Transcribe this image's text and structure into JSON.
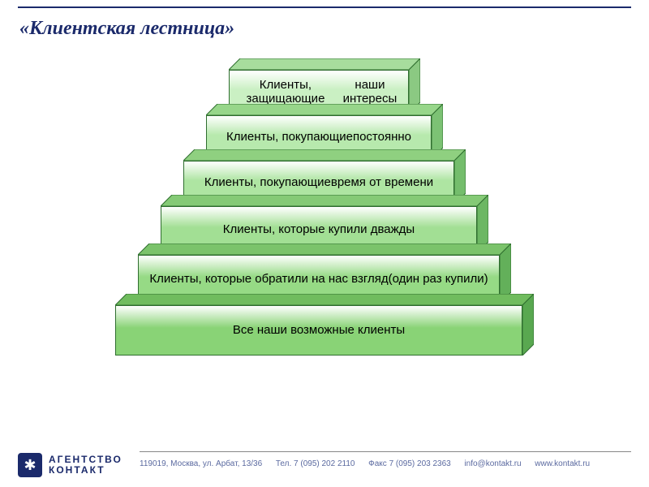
{
  "title": "«Клиентская лестница»",
  "title_color": "#1b2a6b",
  "title_fontsize": 24,
  "background_color": "#ffffff",
  "pyramid": {
    "type": "infographic",
    "depth": 14,
    "border_color": "#2f6e2f",
    "text_color": "#000000",
    "label_fontsize": 15,
    "steps": [
      {
        "label_line1": "Клиенты, защищающие",
        "label_line2": "наши интересы",
        "front_width": 222,
        "front_height": 54,
        "front_color": "#caf0c3",
        "top_color": "#a7dd9d",
        "side_color": "#8bc982"
      },
      {
        "label_line1": "Клиенты, покупающие",
        "label_line2": "постоянно",
        "front_width": 278,
        "front_height": 54,
        "front_color": "#b7e9ad",
        "top_color": "#97d68a",
        "side_color": "#7cc274"
      },
      {
        "label_line1": "Клиенты, покупающие",
        "label_line2": "время от времени",
        "front_width": 334,
        "front_height": 54,
        "front_color": "#aee5a2",
        "top_color": "#8fd080",
        "side_color": "#74bd6c"
      },
      {
        "label_line1": "Клиенты, которые купили дважды",
        "label_line2": "",
        "front_width": 390,
        "front_height": 58,
        "front_color": "#a2df94",
        "top_color": "#85ca76",
        "side_color": "#6cb763"
      },
      {
        "label_line1": "Клиенты, которые обратили на нас взгляд",
        "label_line2": "(один раз купили)",
        "front_width": 446,
        "front_height": 60,
        "front_color": "#96da85",
        "top_color": "#7bc36b",
        "side_color": "#63b05a"
      },
      {
        "label_line1": "Все наши возможные клиенты",
        "label_line2": "",
        "front_width": 502,
        "front_height": 62,
        "front_color": "#89d376",
        "top_color": "#70bc5e",
        "side_color": "#59a850"
      }
    ]
  },
  "footer": {
    "logo_text1": "АГЕНТСТВО",
    "logo_text2": "КОНТАКТ",
    "address": "119019, Москва, ул. Арбат, 13/36",
    "tel": "Тел. 7 (095) 202 2110",
    "fax": "Факс 7 (095) 203 2363",
    "email": "info@kontakt.ru",
    "web": "www.kontakt.ru",
    "text_color": "#5b6aa0"
  }
}
